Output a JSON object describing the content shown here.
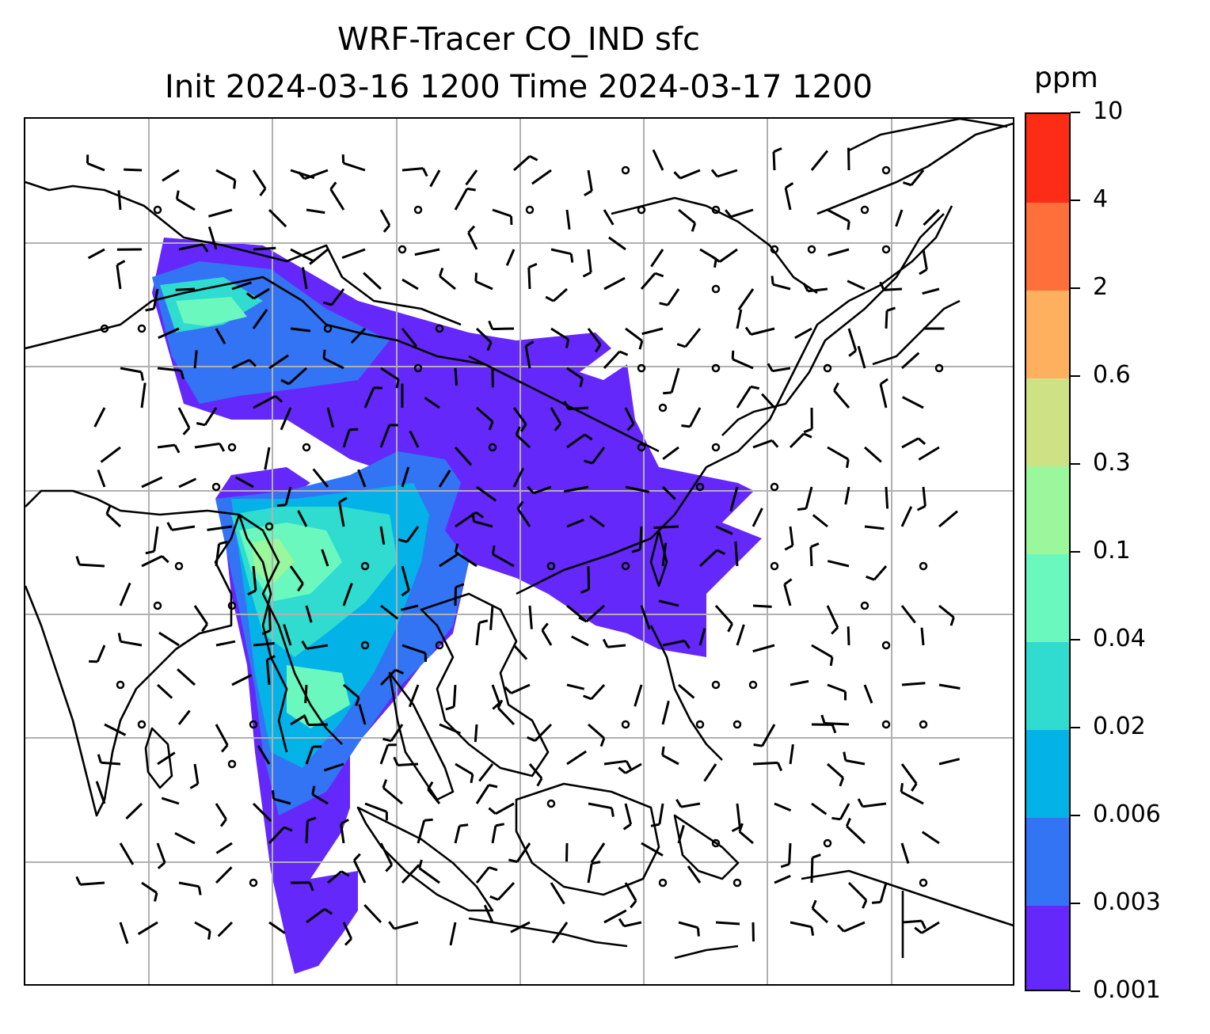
{
  "title": {
    "line1": "WRF-Tracer CO_IND sfc",
    "line2": "Init 2024-03-16 1200 Time 2024-03-17 1200"
  },
  "colorbar": {
    "unit": "ppm",
    "levels": [
      "0.001",
      "0.003",
      "0.006",
      "0.02",
      "0.04",
      "0.1",
      "0.3",
      "0.6",
      "2",
      "4",
      "10"
    ],
    "colors": [
      "#6528fa",
      "#3274f4",
      "#03b3e7",
      "#30dbd0",
      "#6af8bf",
      "#9af79b",
      "#cfe185",
      "#ffb05e",
      "#ff6f3a",
      "#fc2c17"
    ]
  },
  "map": {
    "land_outline_color": "#000000",
    "gridline_color": "#b0b0b0",
    "barb_color": "#000000",
    "plume_fill_colors": {
      "lowest": "#6528fa",
      "low": "#3274f4",
      "mid": "#03b3e7",
      "upper_mid": "#30dbd0",
      "high": "#6af8bf",
      "higher": "#9af79b"
    }
  }
}
